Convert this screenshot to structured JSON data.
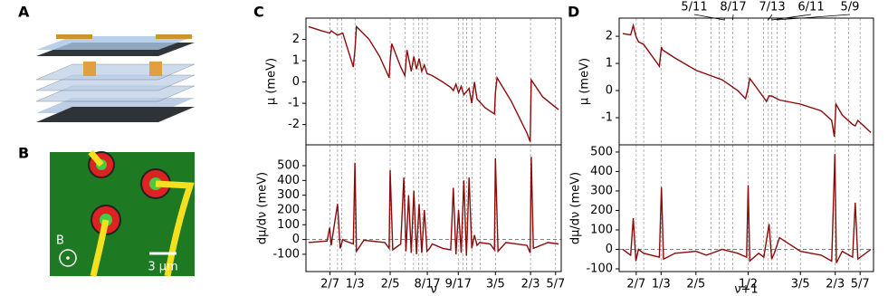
{
  "figure": {
    "panel_labels": [
      "A",
      "B",
      "C",
      "D"
    ],
    "field_label": "B",
    "scale_bar": "3 μm"
  },
  "chart_data": [
    {
      "type": "line",
      "ylabel": "μ (meV)",
      "color": "#8b0a0a",
      "xlim": [
        0.24,
        0.725
      ],
      "ylim": [
        -2.95,
        3.0
      ],
      "yticks": [
        -2,
        -1,
        0,
        1,
        2
      ],
      "vlines": [
        0.2857,
        0.3,
        0.3077,
        0.3333,
        0.4,
        0.4286,
        0.4444,
        0.4545,
        0.4615,
        0.4706,
        0.5294,
        0.5385,
        0.5455,
        0.5556,
        0.5714,
        0.6,
        0.6667,
        0.7143
      ],
      "x": [
        0.245,
        0.27,
        0.285,
        0.288,
        0.3,
        0.31,
        0.33,
        0.333,
        0.336,
        0.36,
        0.38,
        0.398,
        0.4,
        0.403,
        0.42,
        0.428,
        0.432,
        0.44,
        0.445,
        0.45,
        0.455,
        0.46,
        0.465,
        0.47,
        0.48,
        0.5,
        0.515,
        0.52,
        0.525,
        0.53,
        0.535,
        0.54,
        0.55,
        0.555,
        0.56,
        0.565,
        0.58,
        0.598,
        0.6,
        0.603,
        0.63,
        0.66,
        0.666,
        0.668,
        0.69,
        0.72
      ],
      "values": [
        2.6,
        2.4,
        2.3,
        2.4,
        2.2,
        2.3,
        0.7,
        1.5,
        2.6,
        2.0,
        1.2,
        0.2,
        1.0,
        1.8,
        0.7,
        0.3,
        1.5,
        0.5,
        1.2,
        0.6,
        1.1,
        0.5,
        0.8,
        0.4,
        0.3,
        0.0,
        -0.25,
        -0.4,
        -0.1,
        -0.5,
        -0.2,
        -0.6,
        -0.3,
        -1.0,
        0.0,
        -0.8,
        -1.2,
        -1.5,
        -0.5,
        0.2,
        -0.9,
        -2.4,
        -2.8,
        0.1,
        -0.7,
        -1.3
      ]
    },
    {
      "type": "line",
      "ylabel": "dμ/dν (meV)",
      "xlabel": "ν",
      "color": "#8b0a0a",
      "xlim": [
        0.24,
        0.725
      ],
      "ylim": [
        -217,
        641
      ],
      "yticks": [
        -100,
        0,
        100,
        200,
        300,
        400,
        500
      ],
      "hline": 0,
      "xticks": [
        {
          "value": 0.2857,
          "label": "2/7"
        },
        {
          "value": 0.3333,
          "label": "1/3"
        },
        {
          "value": 0.4,
          "label": "2/5"
        },
        {
          "value": 0.4706,
          "label": "8/17"
        },
        {
          "value": 0.5294,
          "label": "9/17"
        },
        {
          "value": 0.6,
          "label": "3/5"
        },
        {
          "value": 0.6667,
          "label": "2/3"
        },
        {
          "value": 0.7143,
          "label": "5/7"
        }
      ],
      "vlines": [
        0.2857,
        0.3,
        0.3077,
        0.3333,
        0.4,
        0.4286,
        0.4444,
        0.4545,
        0.4615,
        0.4706,
        0.5294,
        0.5385,
        0.5455,
        0.5556,
        0.5714,
        0.6,
        0.6667,
        0.7143
      ],
      "x": [
        0.245,
        0.28,
        0.285,
        0.288,
        0.29,
        0.3,
        0.305,
        0.31,
        0.315,
        0.33,
        0.333,
        0.336,
        0.35,
        0.39,
        0.398,
        0.4,
        0.405,
        0.42,
        0.426,
        0.43,
        0.435,
        0.44,
        0.445,
        0.45,
        0.455,
        0.46,
        0.465,
        0.47,
        0.475,
        0.48,
        0.5,
        0.515,
        0.52,
        0.525,
        0.53,
        0.535,
        0.54,
        0.545,
        0.55,
        0.555,
        0.56,
        0.565,
        0.57,
        0.59,
        0.598,
        0.6,
        0.605,
        0.62,
        0.66,
        0.666,
        0.668,
        0.672,
        0.7,
        0.72
      ],
      "values": [
        -20,
        -10,
        80,
        -40,
        10,
        240,
        -60,
        0,
        -10,
        -30,
        520,
        -80,
        -5,
        -20,
        -60,
        470,
        -70,
        -30,
        420,
        -80,
        300,
        -90,
        330,
        -100,
        240,
        -90,
        200,
        -80,
        -60,
        -30,
        -60,
        -70,
        350,
        -100,
        200,
        -90,
        400,
        -110,
        420,
        -60,
        30,
        -40,
        -20,
        -30,
        -70,
        550,
        -80,
        -20,
        -40,
        -90,
        560,
        -60,
        -20,
        -30
      ]
    },
    {
      "type": "line",
      "ylabel": "μ (meV)",
      "color": "#8b0a0a",
      "xlim": [
        0.253,
        0.74
      ],
      "ylim": [
        -2.0,
        2.67
      ],
      "yticks": [
        -1,
        0,
        1,
        2
      ],
      "top_labels": [
        {
          "value": 0.4545,
          "label": "5/11"
        },
        {
          "value": 0.4706,
          "label": "8/17"
        },
        {
          "value": 0.5385,
          "label": "7/13"
        },
        {
          "value": 0.5455,
          "label": "6/11"
        },
        {
          "value": 0.5556,
          "label": "5/9"
        }
      ],
      "vlines": [
        0.2857,
        0.3,
        0.3333,
        0.4,
        0.4286,
        0.4444,
        0.4545,
        0.4706,
        0.5,
        0.5294,
        0.5385,
        0.5455,
        0.5556,
        0.5714,
        0.6,
        0.6667,
        0.6923,
        0.7143
      ],
      "x": [
        0.26,
        0.275,
        0.28,
        0.285,
        0.29,
        0.3,
        0.33,
        0.334,
        0.336,
        0.36,
        0.4,
        0.45,
        0.48,
        0.495,
        0.5,
        0.503,
        0.52,
        0.535,
        0.54,
        0.545,
        0.56,
        0.6,
        0.64,
        0.66,
        0.665,
        0.668,
        0.68,
        0.7,
        0.705,
        0.71,
        0.735
      ],
      "values": [
        2.1,
        2.05,
        2.4,
        2.0,
        1.8,
        1.7,
        0.9,
        1.6,
        1.5,
        1.2,
        0.75,
        0.4,
        0.0,
        -0.3,
        0.1,
        0.45,
        0.0,
        -0.4,
        -0.2,
        -0.2,
        -0.35,
        -0.5,
        -0.75,
        -1.1,
        -1.7,
        -0.5,
        -0.9,
        -1.25,
        -1.3,
        -1.1,
        -1.55
      ]
    },
    {
      "type": "line",
      "ylabel": "dμ/dν (meV)",
      "xlabel": "ν+1",
      "color": "#8b0a0a",
      "xlim": [
        0.253,
        0.74
      ],
      "ylim": [
        -114,
        537
      ],
      "yticks": [
        -100,
        0,
        100,
        200,
        300,
        400,
        500
      ],
      "hline": 0,
      "xticks": [
        {
          "value": 0.2857,
          "label": "2/7"
        },
        {
          "value": 0.3333,
          "label": "1/3"
        },
        {
          "value": 0.4,
          "label": "2/5"
        },
        {
          "value": 0.5,
          "label": "1/2"
        },
        {
          "value": 0.6,
          "label": "3/5"
        },
        {
          "value": 0.6667,
          "label": "2/3"
        },
        {
          "value": 0.7143,
          "label": "5/7"
        }
      ],
      "vlines": [
        0.2857,
        0.3,
        0.3333,
        0.4,
        0.4286,
        0.4444,
        0.4545,
        0.4706,
        0.5,
        0.5294,
        0.5385,
        0.5455,
        0.5556,
        0.5714,
        0.6,
        0.6667,
        0.6923,
        0.7143
      ],
      "x": [
        0.26,
        0.275,
        0.28,
        0.285,
        0.29,
        0.3,
        0.33,
        0.334,
        0.338,
        0.36,
        0.4,
        0.42,
        0.45,
        0.48,
        0.497,
        0.5,
        0.503,
        0.52,
        0.53,
        0.54,
        0.545,
        0.55,
        0.56,
        0.6,
        0.62,
        0.64,
        0.66,
        0.666,
        0.669,
        0.68,
        0.7,
        0.705,
        0.71,
        0.735
      ],
      "values": [
        0,
        -30,
        160,
        -60,
        0,
        -20,
        -40,
        320,
        -50,
        -20,
        -10,
        -30,
        0,
        -20,
        -40,
        330,
        -60,
        -20,
        -40,
        130,
        -50,
        -20,
        60,
        -10,
        -20,
        -30,
        -60,
        490,
        -70,
        -10,
        -40,
        240,
        -50,
        0
      ]
    }
  ]
}
